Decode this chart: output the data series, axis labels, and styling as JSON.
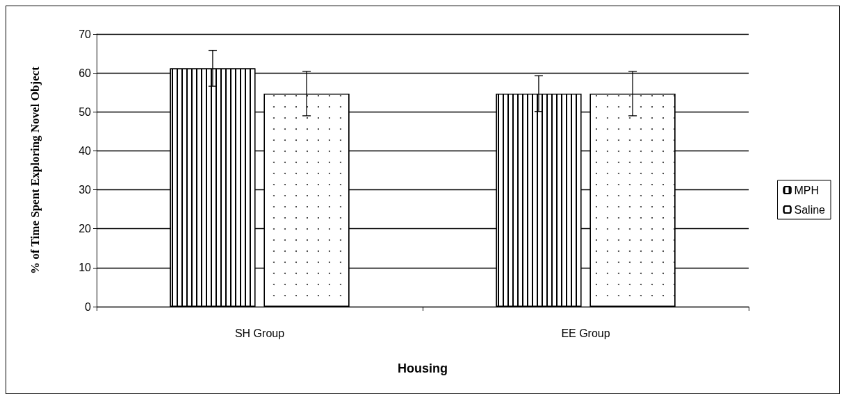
{
  "chart_data": {
    "type": "bar",
    "xlabel": "Housing",
    "ylabel": "% of Time Spent Exploring Novel Object",
    "categories": [
      "SH Group",
      "EE Group"
    ],
    "series": [
      {
        "name": "MPH",
        "color": "#ffffff",
        "values": [
          61.2,
          54.7
        ],
        "errors": [
          4.6,
          4.6
        ]
      },
      {
        "name": "Saline",
        "color": "#ffffff",
        "values": [
          54.7,
          54.7
        ],
        "errors": [
          5.7,
          5.7
        ]
      }
    ],
    "ylim": [
      0,
      70
    ],
    "yticks": [
      0,
      10,
      20,
      30,
      40,
      50,
      60,
      70
    ],
    "grid": "y",
    "legend": "right"
  }
}
